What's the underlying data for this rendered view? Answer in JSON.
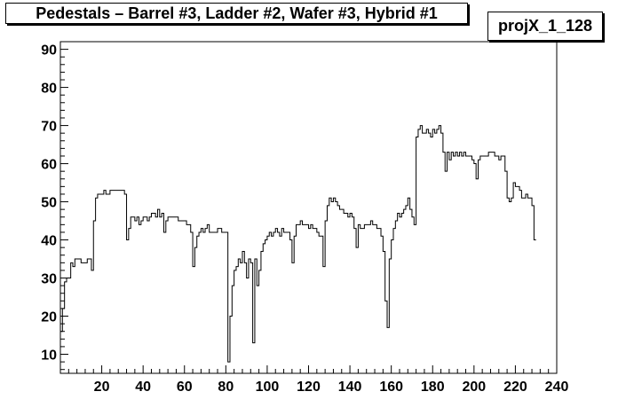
{
  "chart_data": {
    "type": "histogram",
    "title": "Pedestals – Barrel #3, Ladder #2, Wafer #3, Hybrid #1",
    "histogram_name": "projX_1_128",
    "xlabel": "",
    "ylabel": "",
    "xlim": [
      0,
      240
    ],
    "ylim": [
      5,
      92
    ],
    "x_ticks": [
      20,
      40,
      60,
      80,
      100,
      120,
      140,
      160,
      180,
      200,
      220,
      240
    ],
    "y_ticks": [
      10,
      20,
      30,
      40,
      50,
      60,
      70,
      80,
      90
    ],
    "bin_width": 1,
    "grid": false,
    "values": [
      16,
      22,
      29,
      30,
      30,
      34,
      33,
      35,
      35,
      35,
      34,
      34,
      34,
      35,
      35,
      32,
      45,
      51,
      52,
      52,
      52,
      53,
      52,
      52,
      53,
      53,
      53,
      53,
      53,
      53,
      53,
      52,
      40,
      43,
      46,
      46,
      45,
      46,
      44,
      45,
      46,
      46,
      45,
      46,
      47,
      47,
      46,
      48,
      46,
      47,
      42,
      45,
      46,
      46,
      46,
      46,
      46,
      45,
      45,
      45,
      45,
      44,
      44,
      42,
      33,
      38,
      41,
      42,
      43,
      42,
      43,
      44,
      42,
      42,
      42,
      42,
      43,
      43,
      42,
      42,
      42,
      8,
      20,
      28,
      32,
      33,
      35,
      34,
      37,
      34,
      30,
      35,
      34,
      13,
      35,
      28,
      32,
      37,
      39,
      40,
      41,
      42,
      41,
      42,
      43,
      42,
      41,
      43,
      42,
      42,
      42,
      40,
      34,
      41,
      44,
      44,
      45,
      44,
      44,
      44,
      43,
      44,
      43,
      43,
      42,
      41,
      41,
      33,
      45,
      49,
      51,
      50,
      51,
      50,
      49,
      48,
      48,
      47,
      47,
      46,
      47,
      46,
      43,
      38,
      44,
      43,
      43,
      44,
      44,
      44,
      45,
      44,
      44,
      43,
      43,
      41,
      37,
      24,
      17,
      35,
      40,
      43,
      45,
      47,
      46,
      47,
      48,
      49,
      51,
      48,
      46,
      44,
      67,
      69,
      70,
      68,
      68,
      69,
      68,
      67,
      69,
      68,
      69,
      70,
      68,
      63,
      58,
      63,
      61,
      63,
      62,
      63,
      62,
      63,
      62,
      63,
      62,
      62,
      62,
      61,
      60,
      56,
      61,
      62,
      62,
      62,
      62,
      63,
      63,
      63,
      62,
      62,
      61,
      62,
      62,
      58,
      51,
      50,
      51,
      55,
      54,
      54,
      53,
      51,
      51,
      52,
      51,
      51,
      49,
      40
    ]
  },
  "colors": {
    "line": "#000000",
    "frame": "#000000",
    "background": "#ffffff"
  }
}
